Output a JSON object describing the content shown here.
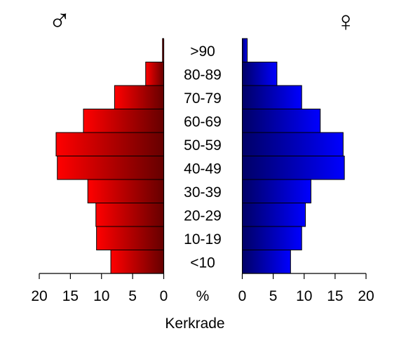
{
  "chart_data": {
    "type": "bar",
    "title": "Kerkrade",
    "center_label": "%",
    "male_symbol": "♂",
    "female_symbol": "♀",
    "categories": [
      "<10",
      "10-19",
      "20-29",
      "30-39",
      "40-49",
      "50-59",
      "60-69",
      "70-79",
      "80-89",
      ">90"
    ],
    "xlim": [
      0,
      20
    ],
    "x_ticks": [
      "20",
      "15",
      "10",
      "5",
      "0"
    ],
    "x_ticks_right": [
      "0",
      "5",
      "10",
      "15",
      "20"
    ],
    "series": [
      {
        "values": [
          8.5,
          10.8,
          10.9,
          12.2,
          17.1,
          17.3,
          12.9,
          7.9,
          2.9,
          0.2
        ],
        "color": "#ff0000",
        "color_dark": "#660000"
      },
      {
        "values": [
          7.8,
          9.6,
          10.2,
          11.1,
          16.5,
          16.3,
          12.6,
          9.6,
          5.6,
          0.8
        ],
        "color": "#0000ff",
        "color_dark": "#000066"
      }
    ]
  }
}
